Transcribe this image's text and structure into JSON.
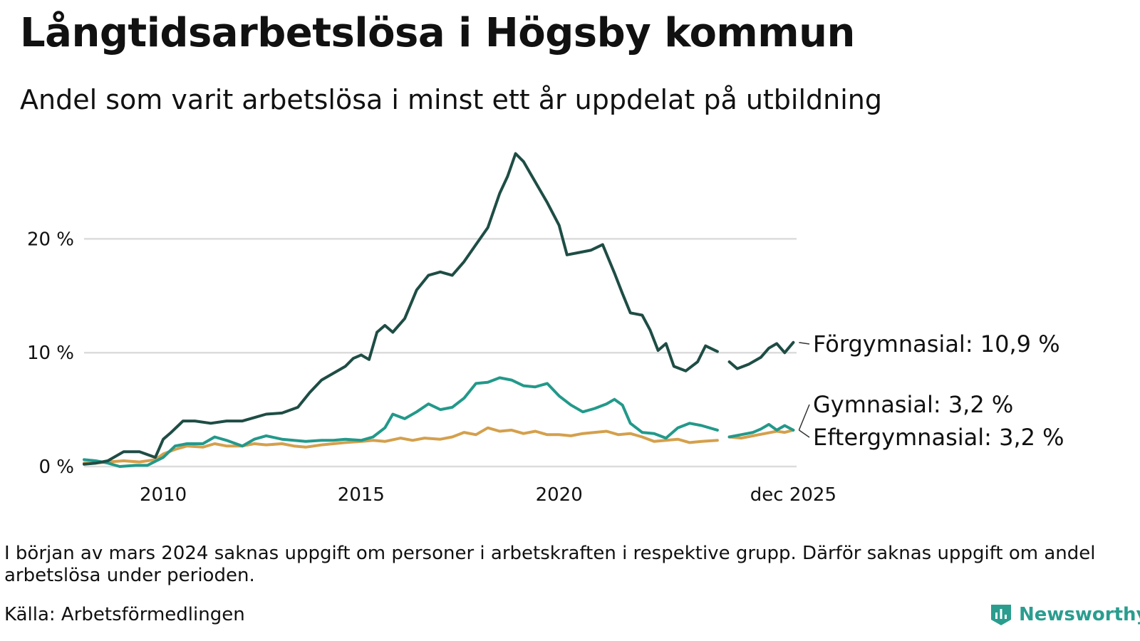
{
  "title": "Långtidsarbetslösa i Högsby kommun",
  "subtitle": "Andel som varit arbetslösa i minst ett år uppdelat på utbildning",
  "note": "I början av mars 2024 saknas uppgift om personer i arbetskraften i respektive grupp. Därför saknas uppgift om andel arbetslösa under perioden.",
  "source": "Källa: Arbetsförmedlingen",
  "logo_text": "Newsworthy",
  "chart_data": {
    "type": "line",
    "x_unit": "year",
    "xlim": [
      2008.0,
      2026.0
    ],
    "ylim": [
      0,
      27.6
    ],
    "y_ticks": [
      {
        "value": 0,
        "label": "0 %"
      },
      {
        "value": 10,
        "label": "10 %"
      },
      {
        "value": 20,
        "label": "20 %"
      }
    ],
    "x_ticks": [
      {
        "value": 2010,
        "label": "2010"
      },
      {
        "value": 2015,
        "label": "2015"
      },
      {
        "value": 2020,
        "label": "2020"
      },
      {
        "value": 2025.917,
        "label": "dec 2025"
      }
    ],
    "gap": [
      2024.0,
      2024.3
    ],
    "series": [
      {
        "name": "Förgymnasial",
        "label": "Förgymnasial: 10,9 %",
        "color": "#1e4d45",
        "points": [
          [
            2008.0,
            0.2
          ],
          [
            2008.3,
            0.3
          ],
          [
            2008.6,
            0.5
          ],
          [
            2009.0,
            1.3
          ],
          [
            2009.4,
            1.3
          ],
          [
            2009.8,
            0.8
          ],
          [
            2010.0,
            2.4
          ],
          [
            2010.2,
            3.0
          ],
          [
            2010.5,
            4.0
          ],
          [
            2010.8,
            4.0
          ],
          [
            2011.2,
            3.8
          ],
          [
            2011.6,
            4.0
          ],
          [
            2012.0,
            4.0
          ],
          [
            2012.3,
            4.3
          ],
          [
            2012.6,
            4.6
          ],
          [
            2013.0,
            4.7
          ],
          [
            2013.4,
            5.2
          ],
          [
            2013.7,
            6.5
          ],
          [
            2014.0,
            7.6
          ],
          [
            2014.3,
            8.2
          ],
          [
            2014.6,
            8.8
          ],
          [
            2014.8,
            9.5
          ],
          [
            2015.0,
            9.8
          ],
          [
            2015.2,
            9.4
          ],
          [
            2015.4,
            11.8
          ],
          [
            2015.6,
            12.4
          ],
          [
            2015.8,
            11.8
          ],
          [
            2016.1,
            13.0
          ],
          [
            2016.4,
            15.5
          ],
          [
            2016.7,
            16.8
          ],
          [
            2017.0,
            17.1
          ],
          [
            2017.3,
            16.8
          ],
          [
            2017.6,
            18.0
          ],
          [
            2017.9,
            19.5
          ],
          [
            2018.2,
            21.0
          ],
          [
            2018.5,
            24.0
          ],
          [
            2018.7,
            25.5
          ],
          [
            2018.9,
            27.5
          ],
          [
            2019.1,
            26.8
          ],
          [
            2019.4,
            25.0
          ],
          [
            2019.7,
            23.2
          ],
          [
            2020.0,
            21.2
          ],
          [
            2020.2,
            18.6
          ],
          [
            2020.5,
            18.8
          ],
          [
            2020.8,
            19.0
          ],
          [
            2021.1,
            19.5
          ],
          [
            2021.4,
            17.0
          ],
          [
            2021.6,
            15.2
          ],
          [
            2021.8,
            13.5
          ],
          [
            2022.1,
            13.3
          ],
          [
            2022.3,
            12.0
          ],
          [
            2022.5,
            10.2
          ],
          [
            2022.7,
            10.8
          ],
          [
            2022.9,
            8.8
          ],
          [
            2023.2,
            8.4
          ],
          [
            2023.5,
            9.2
          ],
          [
            2023.7,
            10.6
          ],
          [
            2024.0,
            10.1
          ],
          [
            2024.3,
            9.2
          ],
          [
            2024.5,
            8.6
          ],
          [
            2024.8,
            9.0
          ],
          [
            2025.1,
            9.6
          ],
          [
            2025.3,
            10.4
          ],
          [
            2025.5,
            10.8
          ],
          [
            2025.7,
            10.0
          ],
          [
            2025.917,
            10.9
          ]
        ]
      },
      {
        "name": "Gymnasial",
        "label": "Gymnasial:  3,2 %",
        "color": "#22998a",
        "points": [
          [
            2008.0,
            0.6
          ],
          [
            2008.3,
            0.5
          ],
          [
            2008.6,
            0.3
          ],
          [
            2008.9,
            0.0
          ],
          [
            2009.3,
            0.1
          ],
          [
            2009.6,
            0.1
          ],
          [
            2010.0,
            0.8
          ],
          [
            2010.3,
            1.8
          ],
          [
            2010.6,
            2.0
          ],
          [
            2011.0,
            2.0
          ],
          [
            2011.3,
            2.6
          ],
          [
            2011.6,
            2.3
          ],
          [
            2012.0,
            1.8
          ],
          [
            2012.3,
            2.4
          ],
          [
            2012.6,
            2.7
          ],
          [
            2013.0,
            2.4
          ],
          [
            2013.3,
            2.3
          ],
          [
            2013.6,
            2.2
          ],
          [
            2014.0,
            2.3
          ],
          [
            2014.3,
            2.3
          ],
          [
            2014.6,
            2.4
          ],
          [
            2015.0,
            2.3
          ],
          [
            2015.3,
            2.6
          ],
          [
            2015.6,
            3.4
          ],
          [
            2015.8,
            4.6
          ],
          [
            2016.1,
            4.2
          ],
          [
            2016.4,
            4.8
          ],
          [
            2016.7,
            5.5
          ],
          [
            2017.0,
            5.0
          ],
          [
            2017.3,
            5.2
          ],
          [
            2017.6,
            6.0
          ],
          [
            2017.9,
            7.3
          ],
          [
            2018.2,
            7.4
          ],
          [
            2018.5,
            7.8
          ],
          [
            2018.8,
            7.6
          ],
          [
            2019.1,
            7.1
          ],
          [
            2019.4,
            7.0
          ],
          [
            2019.7,
            7.3
          ],
          [
            2020.0,
            6.2
          ],
          [
            2020.3,
            5.4
          ],
          [
            2020.6,
            4.8
          ],
          [
            2020.9,
            5.1
          ],
          [
            2021.2,
            5.5
          ],
          [
            2021.4,
            5.9
          ],
          [
            2021.6,
            5.4
          ],
          [
            2021.8,
            3.8
          ],
          [
            2022.1,
            3.0
          ],
          [
            2022.4,
            2.9
          ],
          [
            2022.7,
            2.5
          ],
          [
            2023.0,
            3.4
          ],
          [
            2023.3,
            3.8
          ],
          [
            2023.6,
            3.6
          ],
          [
            2024.0,
            3.2
          ],
          [
            2024.3,
            2.6
          ],
          [
            2024.6,
            2.8
          ],
          [
            2024.9,
            3.0
          ],
          [
            2025.1,
            3.3
          ],
          [
            2025.3,
            3.7
          ],
          [
            2025.5,
            3.2
          ],
          [
            2025.7,
            3.6
          ],
          [
            2025.917,
            3.2
          ]
        ]
      },
      {
        "name": "Eftergymnasial",
        "label": "Eftergymnasial:  3,2 %",
        "color": "#d4a04c",
        "points": [
          [
            2008.0,
            0.3
          ],
          [
            2008.3,
            0.3
          ],
          [
            2008.6,
            0.4
          ],
          [
            2009.0,
            0.5
          ],
          [
            2009.4,
            0.4
          ],
          [
            2009.8,
            0.6
          ],
          [
            2010.0,
            1.1
          ],
          [
            2010.3,
            1.5
          ],
          [
            2010.6,
            1.8
          ],
          [
            2011.0,
            1.7
          ],
          [
            2011.3,
            2.0
          ],
          [
            2011.6,
            1.8
          ],
          [
            2012.0,
            1.8
          ],
          [
            2012.3,
            2.0
          ],
          [
            2012.6,
            1.9
          ],
          [
            2013.0,
            2.0
          ],
          [
            2013.3,
            1.8
          ],
          [
            2013.6,
            1.7
          ],
          [
            2014.0,
            1.9
          ],
          [
            2014.3,
            2.0
          ],
          [
            2014.6,
            2.1
          ],
          [
            2015.0,
            2.2
          ],
          [
            2015.3,
            2.3
          ],
          [
            2015.6,
            2.2
          ],
          [
            2016.0,
            2.5
          ],
          [
            2016.3,
            2.3
          ],
          [
            2016.6,
            2.5
          ],
          [
            2017.0,
            2.4
          ],
          [
            2017.3,
            2.6
          ],
          [
            2017.6,
            3.0
          ],
          [
            2017.9,
            2.8
          ],
          [
            2018.2,
            3.4
          ],
          [
            2018.5,
            3.1
          ],
          [
            2018.8,
            3.2
          ],
          [
            2019.1,
            2.9
          ],
          [
            2019.4,
            3.1
          ],
          [
            2019.7,
            2.8
          ],
          [
            2020.0,
            2.8
          ],
          [
            2020.3,
            2.7
          ],
          [
            2020.6,
            2.9
          ],
          [
            2020.9,
            3.0
          ],
          [
            2021.2,
            3.1
          ],
          [
            2021.5,
            2.8
          ],
          [
            2021.8,
            2.9
          ],
          [
            2022.1,
            2.6
          ],
          [
            2022.4,
            2.2
          ],
          [
            2022.7,
            2.3
          ],
          [
            2023.0,
            2.4
          ],
          [
            2023.3,
            2.1
          ],
          [
            2023.6,
            2.2
          ],
          [
            2024.0,
            2.3
          ],
          [
            2024.3,
            2.6
          ],
          [
            2024.6,
            2.5
          ],
          [
            2024.9,
            2.7
          ],
          [
            2025.2,
            2.9
          ],
          [
            2025.5,
            3.1
          ],
          [
            2025.7,
            3.0
          ],
          [
            2025.917,
            3.2
          ]
        ]
      }
    ]
  }
}
